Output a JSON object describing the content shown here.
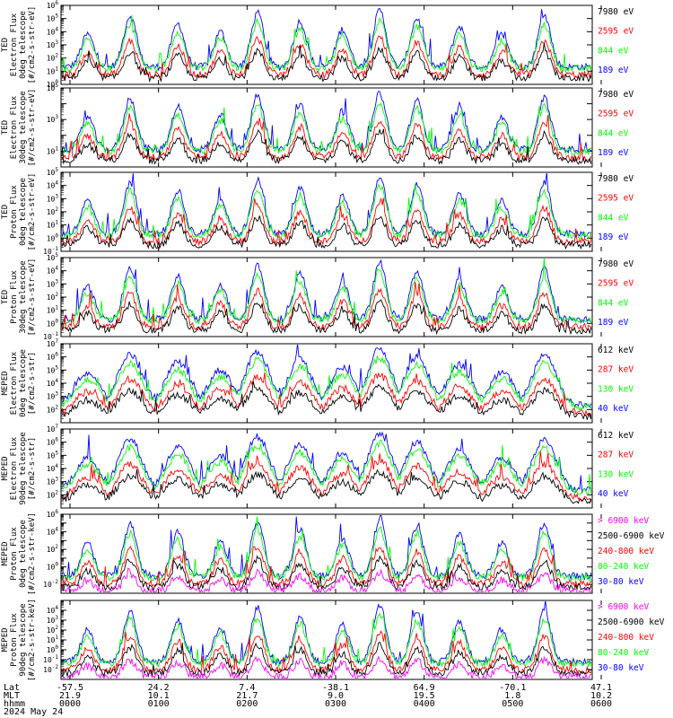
{
  "colors": {
    "black": "#000000",
    "red": "#ff0000",
    "green": "#00ff00",
    "blue": "#0000ff",
    "magenta": "#ff00ff"
  },
  "chart_data": [
    {
      "type": "line",
      "id": "p1",
      "ylabel": [
        "TED",
        "Electron Flux",
        "0deg telescope",
        "[#/cm2-s-str-eV]"
      ],
      "ylim_exp": [
        0,
        6
      ],
      "log_y": true,
      "tick_exponents": [
        0,
        1,
        2,
        3,
        4,
        5,
        6
      ],
      "legend": [
        {
          "text": "7980 eV",
          "color": "black"
        },
        {
          "text": "2595 eV",
          "color": "red"
        },
        {
          "text": "844 eV",
          "color": "green"
        },
        {
          "text": "189 eV",
          "color": "blue"
        }
      ]
    },
    {
      "type": "line",
      "id": "p2",
      "ylabel": [
        "TED",
        "Electron Flux",
        "30deg telescope",
        "[#/cm2-s-str-eV]"
      ],
      "ylim_exp": [
        0,
        5
      ],
      "log_y": true,
      "tick_exponents": [
        1,
        3,
        5
      ],
      "legend": [
        {
          "text": "7980 eV",
          "color": "black"
        },
        {
          "text": "2595 eV",
          "color": "red"
        },
        {
          "text": "844 eV",
          "color": "green"
        },
        {
          "text": "189 eV",
          "color": "blue"
        }
      ]
    },
    {
      "type": "line",
      "id": "p3",
      "ylabel": [
        "TED",
        "Proton Flux",
        "0deg telescope",
        "[#/cm2-s-str-eV]"
      ],
      "ylim_exp": [
        -1,
        5
      ],
      "log_y": true,
      "tick_exponents": [
        -1,
        0,
        1,
        2,
        3,
        4,
        5
      ],
      "legend": [
        {
          "text": "7980 eV",
          "color": "black"
        },
        {
          "text": "2595 eV",
          "color": "red"
        },
        {
          "text": "844 eV",
          "color": "green"
        },
        {
          "text": "189 eV",
          "color": "blue"
        }
      ]
    },
    {
      "type": "line",
      "id": "p4",
      "ylabel": [
        "TED",
        "Proton Flux",
        "30deg telescope",
        "[#/cm2-s-str-eV]"
      ],
      "ylim_exp": [
        -1,
        5
      ],
      "log_y": true,
      "tick_exponents": [
        -1,
        0,
        1,
        2,
        3,
        4,
        5
      ],
      "legend": [
        {
          "text": "7980 eV",
          "color": "black"
        },
        {
          "text": "2595 eV",
          "color": "red"
        },
        {
          "text": "844 eV",
          "color": "green"
        },
        {
          "text": "189 eV",
          "color": "blue"
        }
      ]
    },
    {
      "type": "line",
      "id": "p5",
      "ylabel": [
        "MEPED",
        "Electron Flux",
        "0deg telescope",
        "[#/cm2-s-str]"
      ],
      "ylim_exp": [
        1,
        7
      ],
      "log_y": true,
      "tick_exponents": [
        2,
        3,
        4,
        5,
        6,
        7
      ],
      "legend": [
        {
          "text": "612 keV",
          "color": "black"
        },
        {
          "text": "287 keV",
          "color": "red"
        },
        {
          "text": "130 keV",
          "color": "green"
        },
        {
          "text": "40 keV",
          "color": "blue"
        }
      ]
    },
    {
      "type": "line",
      "id": "p6",
      "ylabel": [
        "MEPED",
        "Electron Flux",
        "90deg telescope",
        "[#/cm2-s-str]"
      ],
      "ylim_exp": [
        1,
        7
      ],
      "log_y": true,
      "tick_exponents": [
        2,
        3,
        4,
        5,
        6,
        7
      ],
      "legend": [
        {
          "text": "612 keV",
          "color": "black"
        },
        {
          "text": "287 keV",
          "color": "red"
        },
        {
          "text": "130 keV",
          "color": "green"
        },
        {
          "text": "40 keV",
          "color": "blue"
        }
      ]
    },
    {
      "type": "line",
      "id": "p7",
      "ylabel": [
        "MEPED",
        "Proton Flux",
        "0deg telescope",
        "[#/cm2-s-str-keV]"
      ],
      "ylim_exp": [
        -3,
        6
      ],
      "log_y": true,
      "tick_exponents": [
        -2,
        0,
        2,
        4,
        6
      ],
      "legend": [
        {
          "text": "> 6900 keV",
          "color": "magenta"
        },
        {
          "text": "2500-6900 keV",
          "color": "black"
        },
        {
          "text": "240-800 keV",
          "color": "red"
        },
        {
          "text": "80-240 keV",
          "color": "green"
        },
        {
          "text": "30-80 keV",
          "color": "blue"
        }
      ]
    },
    {
      "type": "line",
      "id": "p8",
      "ylabel": [
        "MEPED",
        "Proton Flux",
        "90deg telescope",
        "[#/cm2-s-str-keV]"
      ],
      "ylim_exp": [
        -3,
        5
      ],
      "log_y": true,
      "tick_exponents": [
        -2,
        -1,
        0,
        1,
        2,
        3,
        4
      ],
      "legend": [
        {
          "text": "> 6900 keV",
          "color": "magenta"
        },
        {
          "text": "2500-6900 keV",
          "color": "black"
        },
        {
          "text": "240-800 keV",
          "color": "red"
        },
        {
          "text": "80-240 keV",
          "color": "green"
        },
        {
          "text": "30-80 keV",
          "color": "blue"
        }
      ]
    }
  ],
  "xaxis": {
    "row_labels": [
      "Lat",
      "MLT",
      "hhmm",
      "2024 May 24"
    ],
    "ticks": [
      {
        "lat": "-57.5",
        "mlt": "21.9",
        "hhmm": "0000"
      },
      {
        "lat": "24.2",
        "mlt": "10.1",
        "hhmm": "0100"
      },
      {
        "lat": "7.4",
        "mlt": "21.7",
        "hhmm": "0200"
      },
      {
        "lat": "-38.1",
        "mlt": "9.0",
        "hhmm": "0300"
      },
      {
        "lat": "64.9",
        "mlt": "19.5",
        "hhmm": "0400"
      },
      {
        "lat": "-70.1",
        "mlt": "1.8",
        "hhmm": "0500"
      },
      {
        "lat": "47.1",
        "mlt": "10.2",
        "hhmm": "0600"
      }
    ]
  }
}
